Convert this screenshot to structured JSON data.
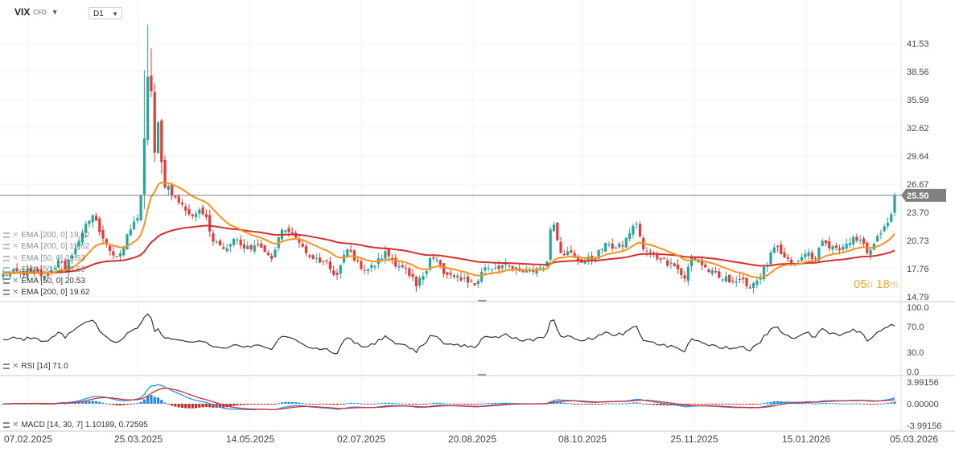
{
  "header": {
    "symbol": "VIX",
    "instrument_type": "CFD",
    "timeframe": "D1"
  },
  "colors": {
    "bull": "#26a69a",
    "bear": "#e53935",
    "ema50": "#f7931e",
    "ema200": "#d62f2f",
    "rsi": "#333333",
    "macd": "#2196f3",
    "macd_signal": "#d32f2f",
    "hist_pos": "#1e88e5",
    "hist_neg": "#c62828",
    "price_badge": "#808080"
  },
  "price_panel": {
    "y_ticks": [
      "41.53",
      "38.56",
      "35.59",
      "32.62",
      "29.64",
      "26.67",
      "23.70",
      "20.73",
      "17.76",
      "14.79"
    ],
    "current_price": "25.50",
    "countdown": {
      "hours": "05",
      "h_unit": "h",
      "minutes": "18",
      "m_unit": "m"
    },
    "legend": [
      {
        "label": "EMA  [200, 0]  19.62",
        "ghost": true
      },
      {
        "label": "EMA  [200, 0]  19.62",
        "ghost": true
      },
      {
        "label": "EMA  [50, 0]  20.53",
        "ghost": true
      },
      {
        "label": "EMA  [50, 0]  20.53",
        "ghost": true
      },
      {
        "label": "EMA  [50, 0]  20.53",
        "ghost": false
      },
      {
        "label": "EMA  [200, 0]  19.62",
        "ghost": false
      }
    ]
  },
  "rsi_panel": {
    "label": "RSI  [14]  71.0",
    "y_ticks": [
      "100.0",
      "70.0",
      "30.0",
      "0.0"
    ]
  },
  "macd_panel": {
    "label": "MACD  [14, 30, 7]  1.10189,  0.72595",
    "y_ticks": [
      "3.99156",
      "0.00000",
      "-3.99156"
    ]
  },
  "x_axis": {
    "labels": [
      "07.02.2025",
      "25.03.2025",
      "14.05.2025",
      "02.07.2025",
      "20.08.2025",
      "08.10.2025",
      "25.11.2025",
      "15.01.2026",
      "05.03.2026"
    ]
  },
  "chart_data": {
    "type": "candlestick",
    "symbol": "VIX",
    "timeframe": "D1",
    "price_range": [
      14.79,
      41.53
    ],
    "current_price": 25.5,
    "anchors": [
      [
        0,
        17.2
      ],
      [
        8,
        17.4
      ],
      [
        12,
        17.0
      ],
      [
        14,
        17.6
      ],
      [
        16,
        18.6
      ],
      [
        18,
        17.7
      ],
      [
        20,
        19.1
      ],
      [
        22,
        20.7
      ],
      [
        24,
        22.5
      ],
      [
        26,
        23.4
      ],
      [
        28,
        21.6
      ],
      [
        30,
        20.4
      ],
      [
        33,
        19.0
      ],
      [
        35,
        20.0
      ],
      [
        37,
        21.9
      ],
      [
        39,
        23.1
      ],
      [
        40,
        25.5
      ],
      [
        41,
        31.5
      ],
      [
        42,
        38.0
      ],
      [
        43,
        36.5
      ],
      [
        44,
        30.0
      ],
      [
        45,
        33.2
      ],
      [
        46,
        29.0
      ],
      [
        47,
        26.3
      ],
      [
        48,
        26.5
      ],
      [
        50,
        25.3
      ],
      [
        53,
        23.9
      ],
      [
        55,
        23.3
      ],
      [
        57,
        24.0
      ],
      [
        59,
        23.2
      ],
      [
        61,
        20.6
      ],
      [
        63,
        20.2
      ],
      [
        65,
        19.9
      ],
      [
        67,
        20.9
      ],
      [
        70,
        19.9
      ],
      [
        72,
        19.8
      ],
      [
        74,
        20.3
      ],
      [
        78,
        18.8
      ],
      [
        80,
        21.1
      ],
      [
        82,
        21.8
      ],
      [
        84,
        21.4
      ],
      [
        86,
        20.5
      ],
      [
        88,
        19.4
      ],
      [
        90,
        18.8
      ],
      [
        93,
        18.5
      ],
      [
        95,
        17.7
      ],
      [
        97,
        17.1
      ],
      [
        100,
        19.8
      ],
      [
        103,
        18.6
      ],
      [
        105,
        17.6
      ],
      [
        108,
        18.0
      ],
      [
        111,
        19.6
      ],
      [
        113,
        18.7
      ],
      [
        116,
        17.9
      ],
      [
        118,
        17.0
      ],
      [
        120,
        15.9
      ],
      [
        122,
        17.0
      ],
      [
        124,
        18.9
      ],
      [
        126,
        18.7
      ],
      [
        128,
        17.2
      ],
      [
        131,
        16.9
      ],
      [
        134,
        16.8
      ],
      [
        137,
        16.0
      ],
      [
        140,
        17.9
      ],
      [
        145,
        18.1
      ],
      [
        150,
        17.5
      ],
      [
        155,
        17.8
      ],
      [
        158,
        18.5
      ],
      [
        159,
        21.9
      ],
      [
        160,
        22.4
      ],
      [
        161,
        20.8
      ],
      [
        162,
        19.4
      ],
      [
        164,
        19.6
      ],
      [
        166,
        18.9
      ],
      [
        169,
        18.5
      ],
      [
        172,
        19.0
      ],
      [
        174,
        19.8
      ],
      [
        176,
        20.3
      ],
      [
        178,
        19.9
      ],
      [
        180,
        20.1
      ],
      [
        182,
        21.5
      ],
      [
        184,
        22.5
      ],
      [
        186,
        19.8
      ],
      [
        188,
        19.5
      ],
      [
        191,
        18.7
      ],
      [
        194,
        18.4
      ],
      [
        196,
        17.7
      ],
      [
        198,
        16.7
      ],
      [
        200,
        19.0
      ],
      [
        202,
        18.6
      ],
      [
        205,
        17.4
      ],
      [
        208,
        16.8
      ],
      [
        212,
        16.4
      ],
      [
        214,
        16.6
      ],
      [
        216,
        15.9
      ],
      [
        219,
        16.5
      ],
      [
        222,
        18.1
      ],
      [
        224,
        20.0
      ],
      [
        226,
        19.3
      ],
      [
        229,
        18.3
      ],
      [
        231,
        18.6
      ],
      [
        234,
        19.5
      ],
      [
        236,
        18.8
      ],
      [
        238,
        20.7
      ],
      [
        240,
        19.9
      ],
      [
        243,
        19.7
      ],
      [
        245,
        20.4
      ],
      [
        247,
        21.1
      ],
      [
        249,
        20.8
      ],
      [
        251,
        19.4
      ],
      [
        253,
        20.4
      ],
      [
        255,
        21.5
      ],
      [
        257,
        22.6
      ],
      [
        258,
        23.5
      ],
      [
        259,
        25.5
      ]
    ],
    "ema50_last": 20.53,
    "ema200_last": 19.62,
    "rsi": {
      "period": 14,
      "last": 71.0,
      "range": [
        0,
        100
      ],
      "levels": [
        30,
        70
      ]
    },
    "macd": {
      "params": [
        14,
        30,
        7
      ],
      "macd_last": 1.10189,
      "signal_last": 0.72595,
      "range": [
        -3.99156,
        3.99156
      ]
    }
  }
}
